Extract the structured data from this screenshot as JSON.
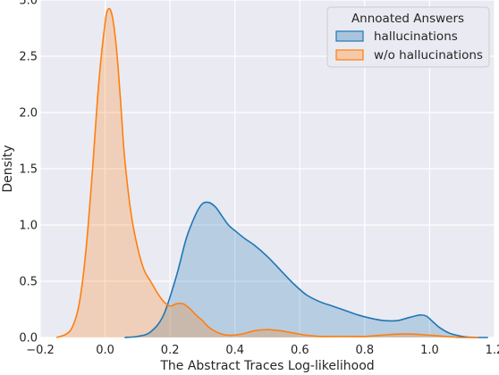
{
  "chart_data": {
    "type": "area",
    "title": "",
    "xlabel": "The Abstract Traces Log-likelihood",
    "ylabel": "Density",
    "xlim": [
      -0.2,
      1.2
    ],
    "ylim": [
      0,
      3.0
    ],
    "xticks": [
      -0.2,
      0.0,
      0.2,
      0.4,
      0.6,
      0.8,
      1.0,
      1.2
    ],
    "xtick_labels": [
      "−0.2",
      "0.0",
      "0.2",
      "0.4",
      "0.6",
      "0.8",
      "1.0",
      "1.2"
    ],
    "yticks": [
      0.0,
      0.5,
      1.0,
      1.5,
      2.0,
      2.5,
      3.0
    ],
    "ytick_labels": [
      "0.0",
      "0.5",
      "1.0",
      "1.5",
      "2.0",
      "2.5",
      "3.0"
    ],
    "grid": true,
    "legend": {
      "title": "Annoated Answers",
      "placement": "top-right"
    },
    "series": [
      {
        "name": "hallucinations",
        "color": "#1f77b4",
        "fill": "#a8c4dc",
        "x": [
          0.06,
          0.1,
          0.14,
          0.18,
          0.22,
          0.25,
          0.28,
          0.3,
          0.32,
          0.34,
          0.36,
          0.38,
          0.4,
          0.43,
          0.46,
          0.5,
          0.54,
          0.58,
          0.62,
          0.66,
          0.7,
          0.74,
          0.78,
          0.82,
          0.86,
          0.9,
          0.94,
          0.97,
          0.99,
          1.01,
          1.03,
          1.06,
          1.1,
          1.14,
          1.18
        ],
        "y": [
          0.0,
          0.01,
          0.05,
          0.2,
          0.55,
          0.88,
          1.1,
          1.19,
          1.2,
          1.16,
          1.08,
          1.0,
          0.95,
          0.88,
          0.82,
          0.72,
          0.6,
          0.48,
          0.38,
          0.32,
          0.28,
          0.24,
          0.2,
          0.17,
          0.15,
          0.15,
          0.18,
          0.2,
          0.19,
          0.14,
          0.09,
          0.04,
          0.01,
          0.0,
          0.0
        ]
      },
      {
        "name": "w/o hallucinations",
        "color": "#ff7f0e",
        "fill": "#f6c9a8",
        "x": [
          -0.15,
          -0.12,
          -0.1,
          -0.08,
          -0.06,
          -0.04,
          -0.02,
          0.0,
          0.01,
          0.02,
          0.03,
          0.04,
          0.05,
          0.06,
          0.08,
          0.1,
          0.12,
          0.14,
          0.16,
          0.18,
          0.2,
          0.22,
          0.24,
          0.26,
          0.28,
          0.3,
          0.32,
          0.35,
          0.38,
          0.42,
          0.46,
          0.5,
          0.54,
          0.58,
          0.62,
          0.66,
          0.7,
          0.75,
          0.8,
          0.85,
          0.9,
          0.95,
          1.0,
          1.05,
          1.1,
          1.15
        ],
        "y": [
          0.0,
          0.03,
          0.1,
          0.3,
          0.75,
          1.45,
          2.25,
          2.8,
          2.92,
          2.88,
          2.7,
          2.4,
          2.0,
          1.6,
          1.1,
          0.8,
          0.6,
          0.5,
          0.4,
          0.32,
          0.28,
          0.3,
          0.3,
          0.26,
          0.2,
          0.15,
          0.09,
          0.04,
          0.02,
          0.03,
          0.06,
          0.07,
          0.06,
          0.04,
          0.02,
          0.01,
          0.01,
          0.01,
          0.01,
          0.02,
          0.03,
          0.03,
          0.02,
          0.01,
          0.0,
          0.0
        ]
      }
    ]
  }
}
